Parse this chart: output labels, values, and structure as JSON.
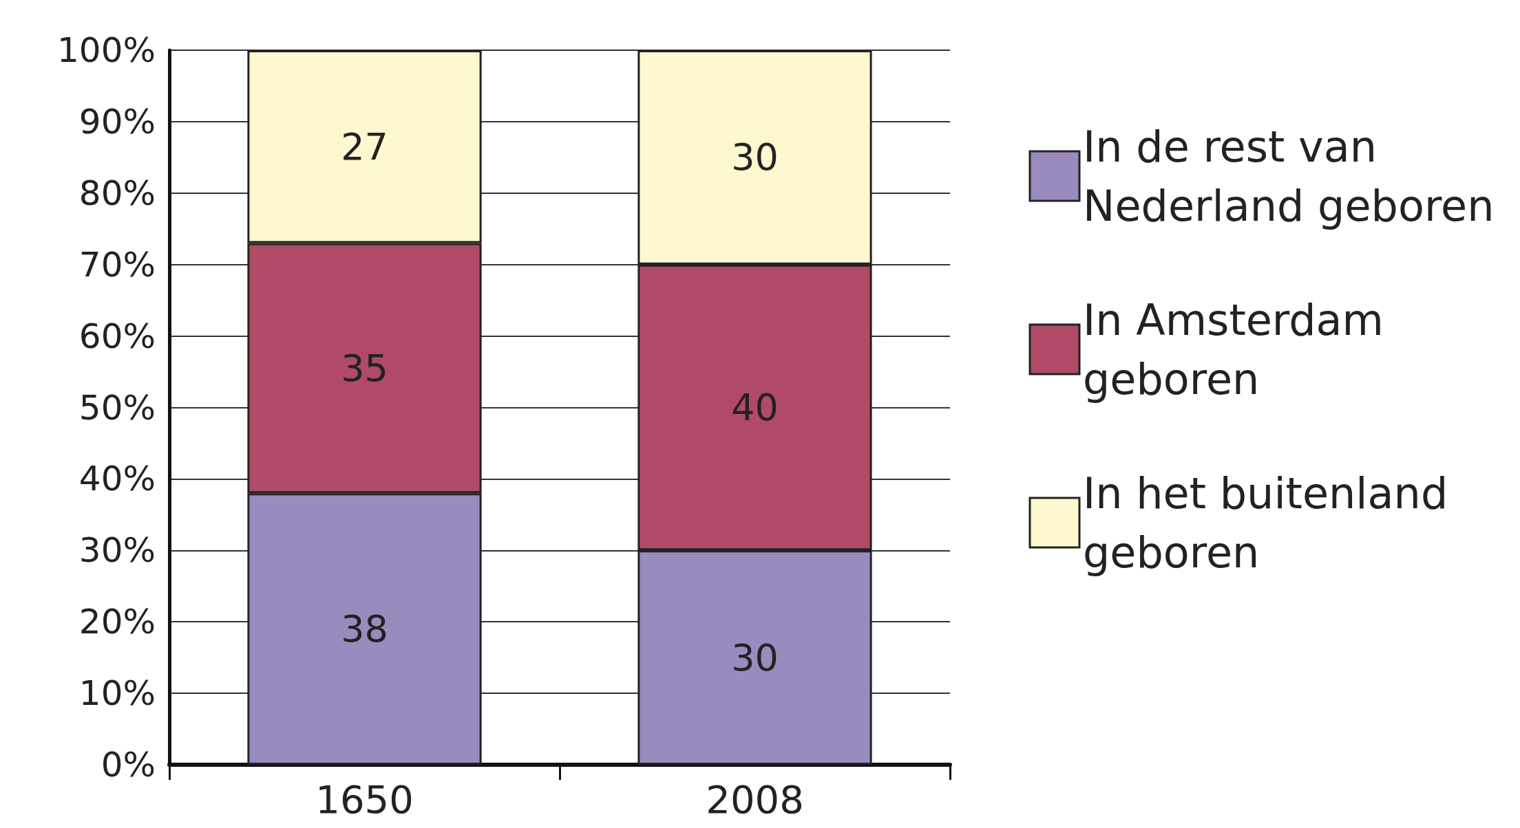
{
  "chart_data": {
    "type": "bar",
    "stacked": true,
    "categories": [
      "1650",
      "2008"
    ],
    "series": [
      {
        "name": "In de rest van Nederland geboren",
        "color": "#9a8bbf",
        "values": [
          38,
          30
        ]
      },
      {
        "name": "In Amsterdam geboren",
        "color": "#b04a66",
        "values": [
          35,
          40
        ]
      },
      {
        "name": "In het buitenland geboren",
        "color": "#fdf8d0",
        "values": [
          27,
          30
        ]
      }
    ],
    "ylim": [
      0,
      100
    ],
    "yticks": [
      {
        "value": 0,
        "label": "0%"
      },
      {
        "value": 10,
        "label": "10%"
      },
      {
        "value": 20,
        "label": "20%"
      },
      {
        "value": 30,
        "label": "30%"
      },
      {
        "value": 40,
        "label": "40%"
      },
      {
        "value": 50,
        "label": "50%"
      },
      {
        "value": 60,
        "label": "60%"
      },
      {
        "value": 70,
        "label": "70%"
      },
      {
        "value": 80,
        "label": "80%"
      },
      {
        "value": 90,
        "label": "90%"
      },
      {
        "value": 100,
        "label": "100%"
      }
    ],
    "grid": "y",
    "legend": "right",
    "data_labels": true
  }
}
